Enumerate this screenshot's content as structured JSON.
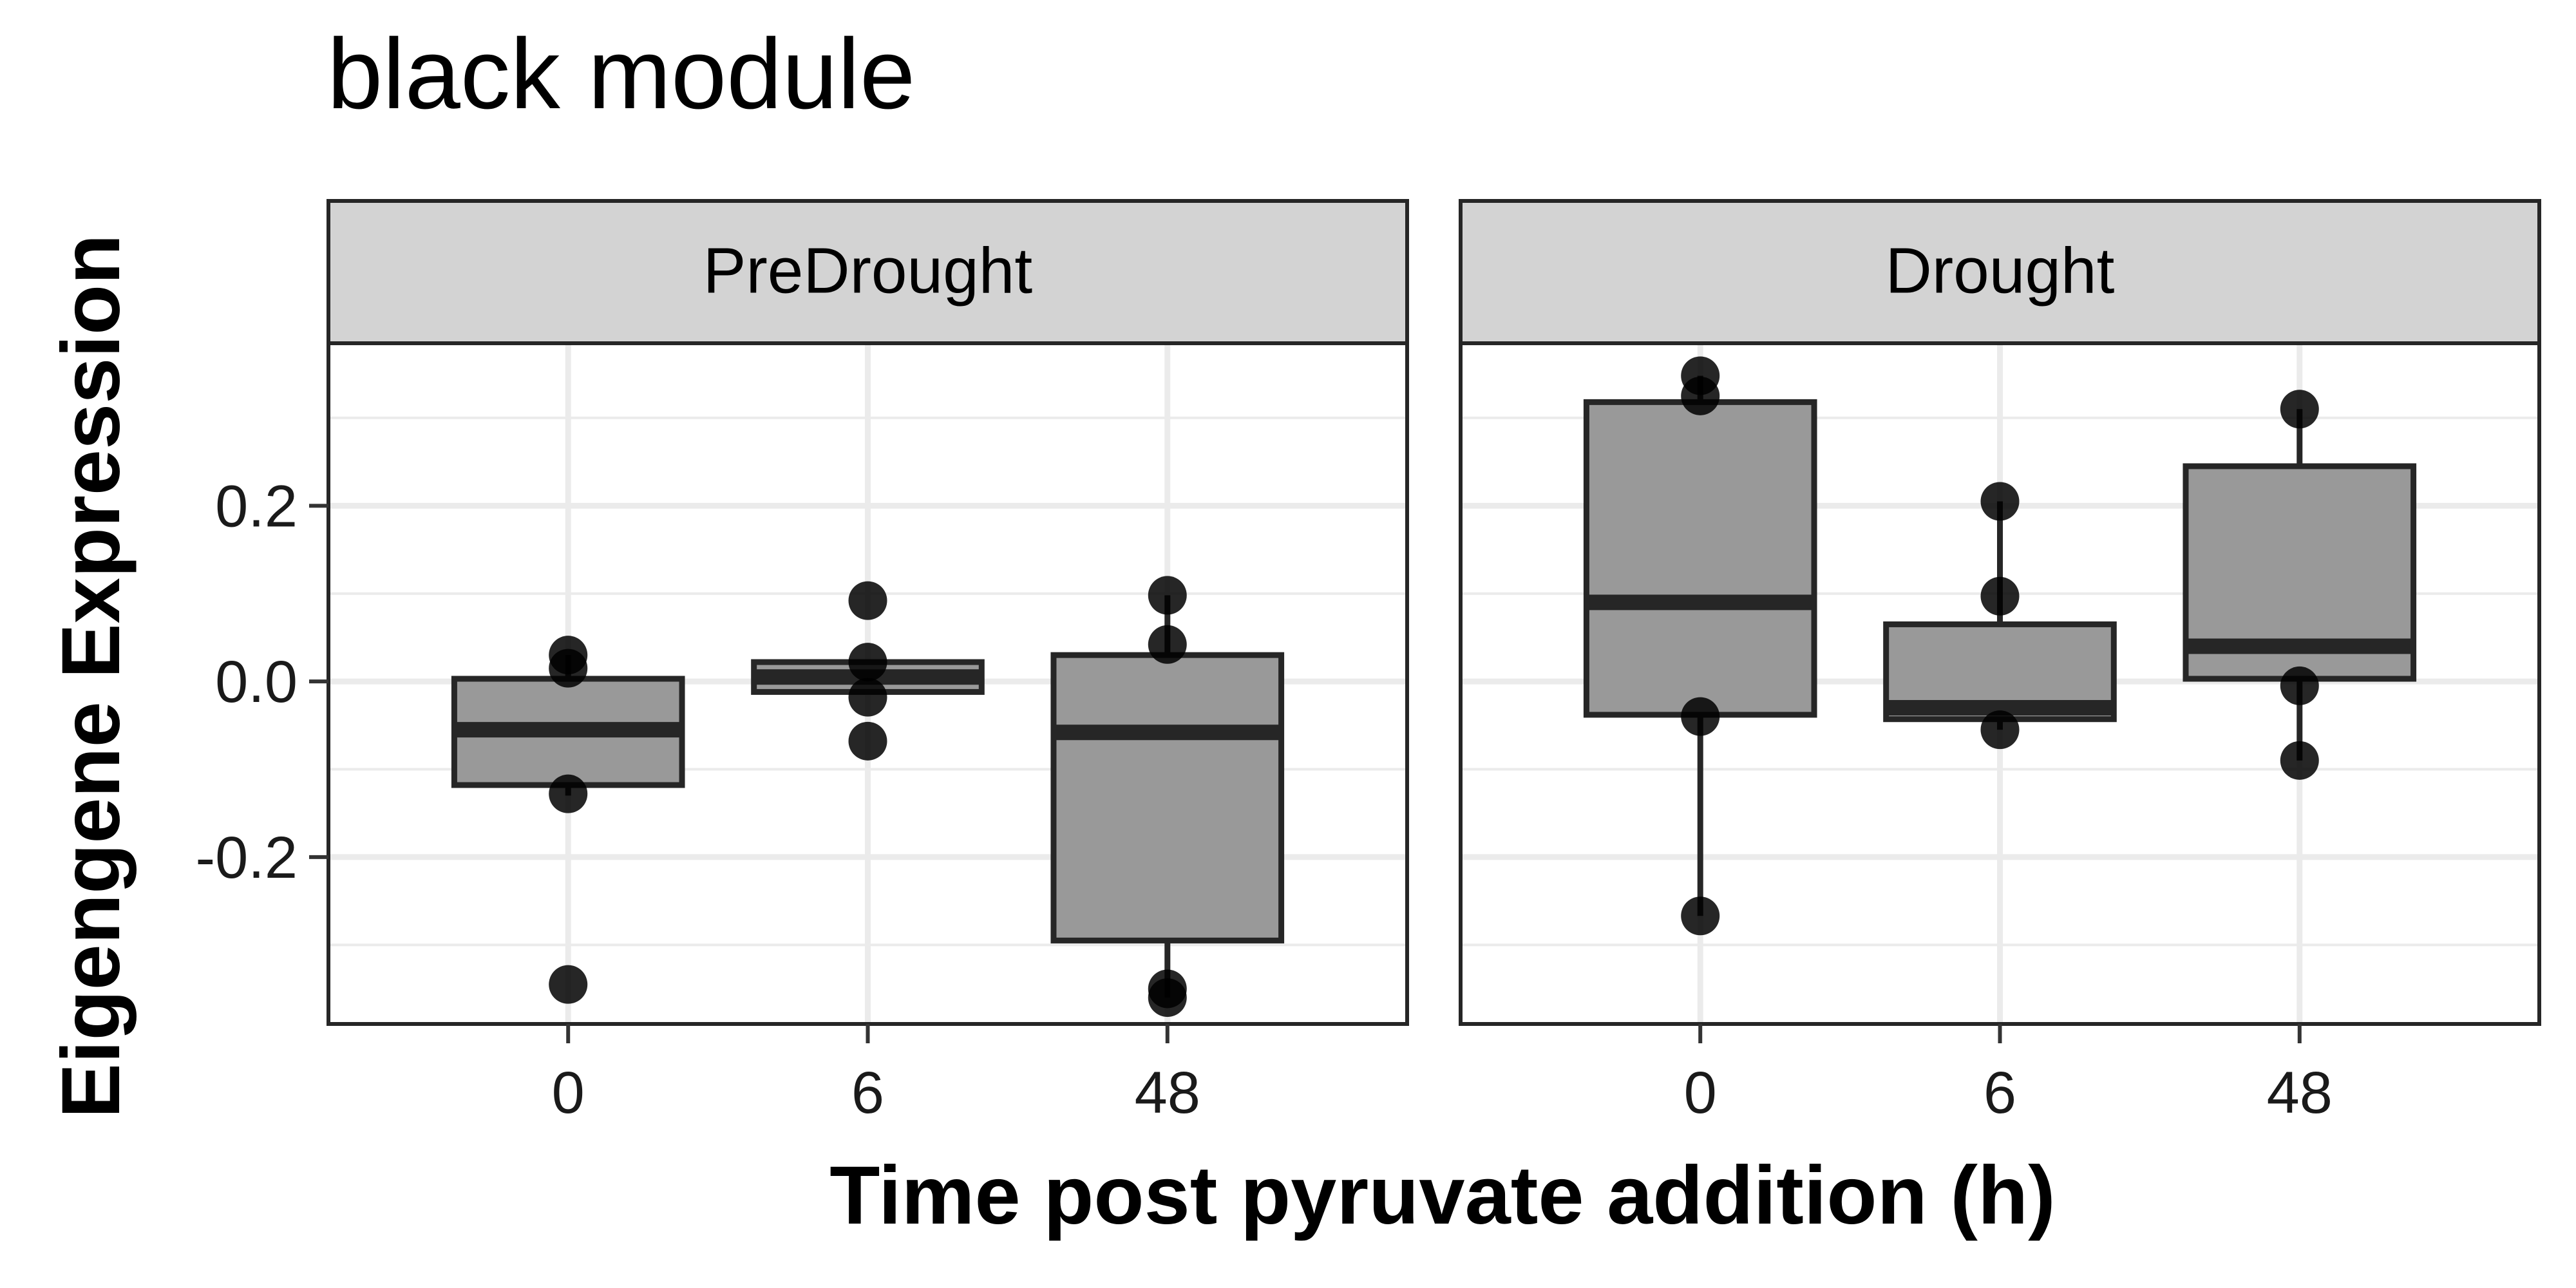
{
  "chart_data": {
    "type": "box",
    "title": "black module",
    "xlabel": "Time post pyruvate addition (h)",
    "ylabel": "Eigengene Expression",
    "categories": [
      "0",
      "6",
      "48"
    ],
    "y_ticks": [
      -0.2,
      0.0,
      0.2
    ],
    "y_tick_labels": [
      "-0.2",
      "0.0",
      "0.2"
    ],
    "ylim": [
      -0.39,
      0.385
    ],
    "grid": true,
    "legend": "none",
    "facets": [
      {
        "label": "PreDrought",
        "boxes": [
          {
            "category": "0",
            "q1": -0.118,
            "median": -0.055,
            "q3": 0.003,
            "whisker_low": -0.13,
            "whisker_high": 0.03,
            "points": [
              0.03,
              0.015,
              -0.128,
              -0.345
            ]
          },
          {
            "category": "6",
            "q1": -0.012,
            "median": 0.005,
            "q3": 0.022,
            "whisker_low": -0.012,
            "whisker_high": 0.022,
            "points": [
              0.092,
              0.022,
              -0.018,
              -0.068
            ]
          },
          {
            "category": "48",
            "q1": -0.295,
            "median": -0.058,
            "q3": 0.03,
            "whisker_low": -0.36,
            "whisker_high": 0.098,
            "points": [
              0.098,
              0.042,
              -0.35,
              -0.36
            ]
          }
        ]
      },
      {
        "label": "Drought",
        "boxes": [
          {
            "category": "0",
            "q1": -0.038,
            "median": 0.09,
            "q3": 0.318,
            "whisker_low": -0.267,
            "whisker_high": 0.348,
            "points": [
              0.348,
              0.325,
              -0.04,
              -0.267
            ]
          },
          {
            "category": "6",
            "q1": -0.043,
            "median": -0.03,
            "q3": 0.065,
            "whisker_low": -0.055,
            "whisker_high": 0.205,
            "points": [
              0.205,
              0.097,
              -0.055
            ]
          },
          {
            "category": "48",
            "q1": 0.003,
            "median": 0.04,
            "q3": 0.245,
            "whisker_low": -0.09,
            "whisker_high": 0.31,
            "points": [
              0.31,
              -0.005,
              -0.09
            ]
          }
        ]
      }
    ]
  },
  "colors": {
    "box_fill": "#999999",
    "box_line": "#262626",
    "point": "#000000",
    "strip_fill": "#d3d3d3",
    "panel_border": "#262626",
    "grid": "#ebebeb"
  }
}
